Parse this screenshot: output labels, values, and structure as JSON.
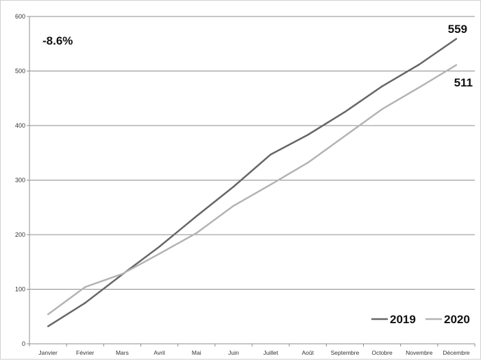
{
  "chart_data": {
    "type": "line",
    "categories": [
      "Janvier",
      "Février",
      "Mars",
      "Avril",
      "Mai",
      "Juin",
      "Juillet",
      "Août",
      "Septembre",
      "Octobre",
      "Novembre",
      "Décembre"
    ],
    "series": [
      {
        "name": "2019",
        "color": "#666666",
        "values": [
          32,
          75,
          127,
          178,
          234,
          288,
          347,
          383,
          425,
          472,
          512,
          559
        ]
      },
      {
        "name": "2020",
        "color": "#b3b3b3",
        "values": [
          54,
          104,
          128,
          165,
          203,
          253,
          292,
          332,
          381,
          430,
          470,
          511
        ]
      }
    ],
    "yticks": [
      0,
      100,
      200,
      300,
      400,
      500,
      600
    ],
    "ylim": [
      0,
      600
    ],
    "grid": true,
    "legend": "bottom-right",
    "annotations": {
      "change": "-8.6%",
      "end_2019": "559",
      "end_2020": "511"
    }
  }
}
